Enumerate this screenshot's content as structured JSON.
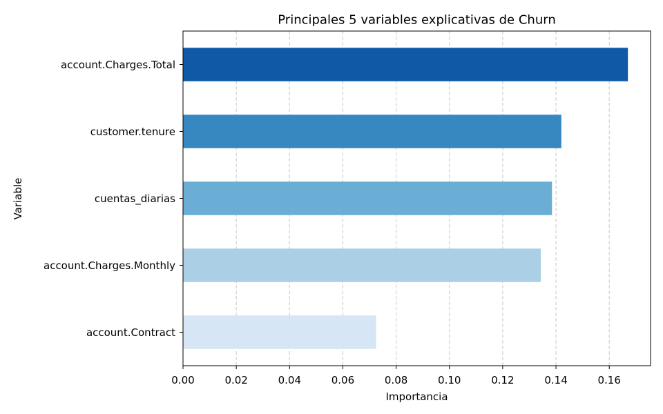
{
  "chart_data": {
    "type": "bar",
    "orientation": "horizontal",
    "title": "Principales 5 variables explicativas de Churn",
    "xlabel": "Importancia",
    "ylabel": "Variable",
    "categories": [
      "account.Charges.Total",
      "customer.tenure",
      "cuentas_diarias",
      "account.Charges.Monthly",
      "account.Contract"
    ],
    "values": [
      0.167,
      0.142,
      0.1385,
      0.1343,
      0.0725
    ],
    "colors": [
      "#1059a6",
      "#3787c0",
      "#6aaed6",
      "#abcfe5",
      "#d6e6f4"
    ],
    "xlim": [
      0,
      0.1755
    ],
    "xticks": [
      0.0,
      0.02,
      0.04,
      0.06,
      0.08,
      0.1,
      0.12,
      0.14,
      0.16
    ],
    "xtick_labels": [
      "0.00",
      "0.02",
      "0.04",
      "0.06",
      "0.08",
      "0.10",
      "0.12",
      "0.14",
      "0.16"
    ],
    "grid": "x-dashed",
    "legend": "none"
  }
}
